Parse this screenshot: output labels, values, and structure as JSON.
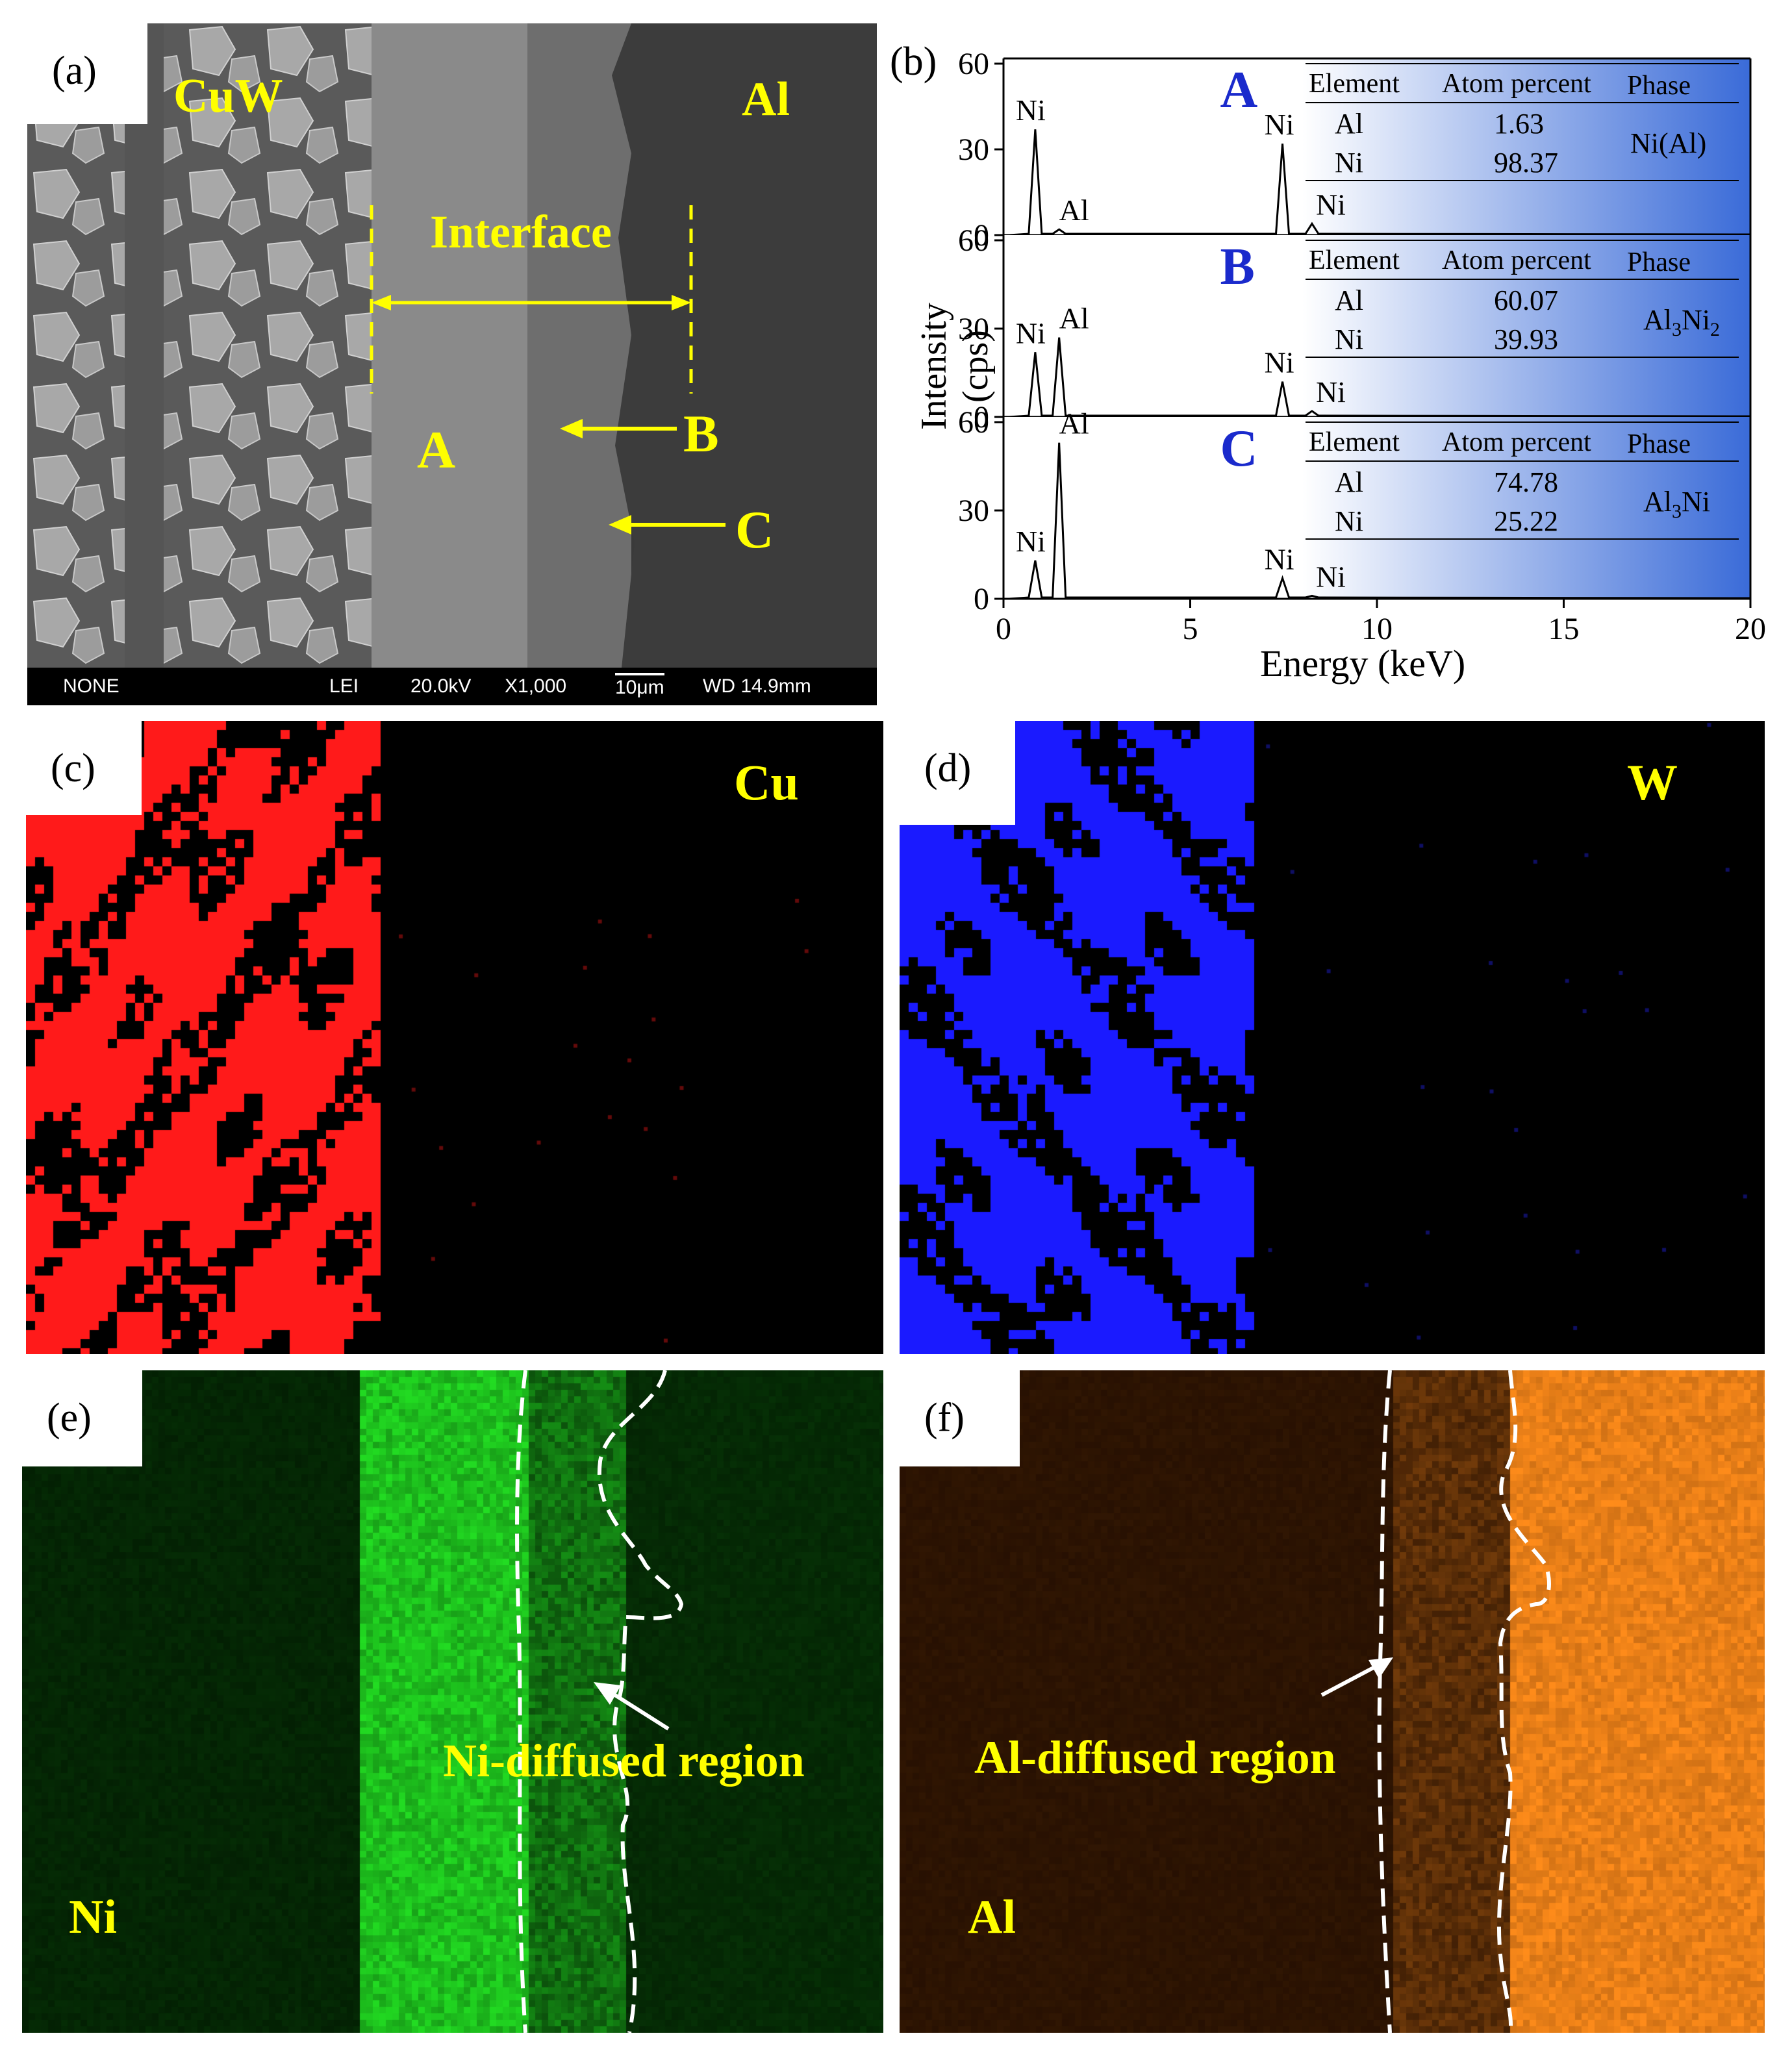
{
  "panels": {
    "a": {
      "label": "(a)",
      "cuw": "CuW",
      "al": "Al",
      "interface": "Interface",
      "A": "A",
      "B": "B",
      "C": "C",
      "sem": {
        "signal": "NONE",
        "detector": "LEI",
        "voltage": "20.0kV",
        "mag": "X1,000",
        "scale": "10μm",
        "wd": "WD 14.9mm"
      }
    },
    "b": {
      "label": "(b)",
      "ylabel": "Intensity (cps)",
      "xlabel": "Energy (keV)",
      "xticks": [
        "0",
        "5",
        "10",
        "15",
        "20"
      ],
      "yticks": [
        "0",
        "30",
        "60"
      ],
      "table_headers": {
        "element": "Element",
        "atom": "Atom percent",
        "phase": "Phase"
      },
      "spectra": [
        {
          "id": "A",
          "rows": [
            {
              "el": "Al",
              "val": "1.63"
            },
            {
              "el": "Ni",
              "val": "98.37"
            }
          ],
          "phase": "Ni(Al)",
          "peak_labels": [
            "Ni",
            "Al",
            "Ni",
            "Ni"
          ]
        },
        {
          "id": "B",
          "rows": [
            {
              "el": "Al",
              "val": "60.07"
            },
            {
              "el": "Ni",
              "val": "39.93"
            }
          ],
          "phase_main": "Al",
          "phase_sub1": "3",
          "phase_mid": "Ni",
          "phase_sub2": "2",
          "peak_labels": [
            "Ni",
            "Al",
            "Ni",
            "Ni"
          ]
        },
        {
          "id": "C",
          "rows": [
            {
              "el": "Al",
              "val": "74.78"
            },
            {
              "el": "Ni",
              "val": "25.22"
            }
          ],
          "phase_main": "Al",
          "phase_sub1": "3",
          "phase_mid": "Ni",
          "peak_labels": [
            "Ni",
            "Al",
            "Ni",
            "Ni"
          ]
        }
      ]
    },
    "c": {
      "label": "(c)",
      "element": "Cu",
      "color": "#ff1a1a"
    },
    "d": {
      "label": "(d)",
      "element": "W",
      "color": "#1a1aff"
    },
    "e": {
      "label": "(e)",
      "element": "Ni",
      "region": "Ni-diffused region",
      "color": "#22dd22"
    },
    "f": {
      "label": "(f)",
      "element": "Al",
      "region": "Al-diffused region",
      "color": "#ff8c1a"
    }
  },
  "chart_data": {
    "type": "line",
    "xlabel": "Energy (keV)",
    "ylabel": "Intensity (cps)",
    "xlim": [
      0,
      20
    ],
    "ylim": [
      0,
      60
    ],
    "series": [
      {
        "name": "A",
        "peaks": [
          {
            "x": 0.85,
            "y": 37
          },
          {
            "x": 1.49,
            "y": 2
          },
          {
            "x": 7.47,
            "y": 32
          },
          {
            "x": 8.26,
            "y": 4
          }
        ]
      },
      {
        "name": "B",
        "peaks": [
          {
            "x": 0.85,
            "y": 22
          },
          {
            "x": 1.49,
            "y": 27
          },
          {
            "x": 7.47,
            "y": 12
          },
          {
            "x": 8.26,
            "y": 2
          }
        ]
      },
      {
        "name": "C",
        "peaks": [
          {
            "x": 0.85,
            "y": 13
          },
          {
            "x": 1.49,
            "y": 53
          },
          {
            "x": 7.47,
            "y": 7
          },
          {
            "x": 8.26,
            "y": 1
          }
        ]
      }
    ]
  }
}
